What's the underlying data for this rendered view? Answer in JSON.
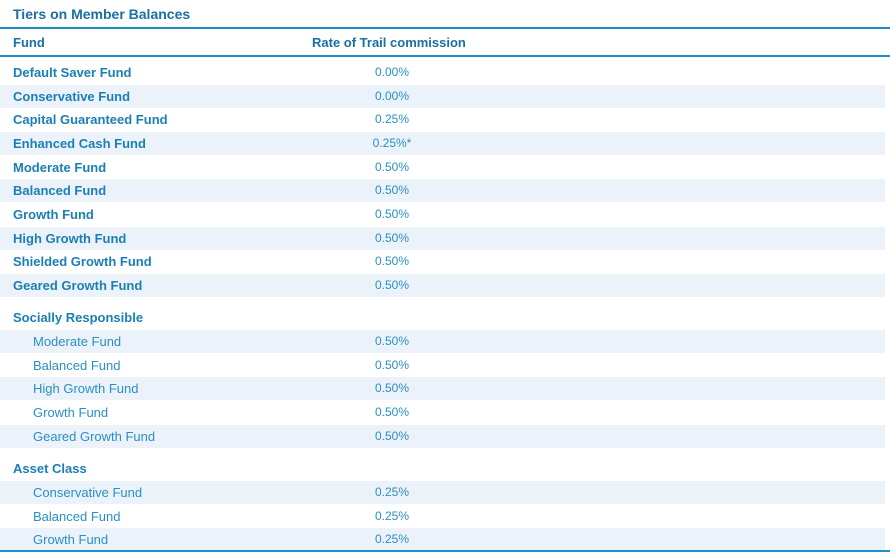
{
  "title": "Tiers on Member Balances",
  "headers": {
    "fund": "Fund",
    "rate": "Rate of Trail commission"
  },
  "main_funds": [
    {
      "name": "Default Saver Fund",
      "rate": "0.00%"
    },
    {
      "name": "Conservative Fund",
      "rate": "0.00%"
    },
    {
      "name": "Capital Guaranteed Fund",
      "rate": "0.25%"
    },
    {
      "name": "Enhanced Cash Fund",
      "rate": "0.25%*"
    },
    {
      "name": "Moderate Fund",
      "rate": "0.50%"
    },
    {
      "name": "Balanced Fund",
      "rate": "0.50%"
    },
    {
      "name": "Growth Fund",
      "rate": "0.50%"
    },
    {
      "name": "High Growth Fund",
      "rate": "0.50%"
    },
    {
      "name": "Shielded Growth Fund",
      "rate": "0.50%"
    },
    {
      "name": "Geared Growth Fund",
      "rate": "0.50%"
    }
  ],
  "socially_responsible": {
    "title": "Socially Responsible",
    "funds": [
      {
        "name": "Moderate Fund",
        "rate": "0.50%"
      },
      {
        "name": "Balanced Fund",
        "rate": "0.50%"
      },
      {
        "name": "High Growth Fund",
        "rate": "0.50%"
      },
      {
        "name": "Growth Fund",
        "rate": "0.50%"
      },
      {
        "name": "Geared Growth Fund",
        "rate": "0.50%"
      }
    ]
  },
  "asset_class": {
    "title": "Asset Class",
    "funds": [
      {
        "name": "Conservative Fund",
        "rate": "0.25%"
      },
      {
        "name": "Balanced Fund",
        "rate": "0.25%"
      },
      {
        "name": "Growth Fund",
        "rate": "0.25%"
      }
    ]
  }
}
